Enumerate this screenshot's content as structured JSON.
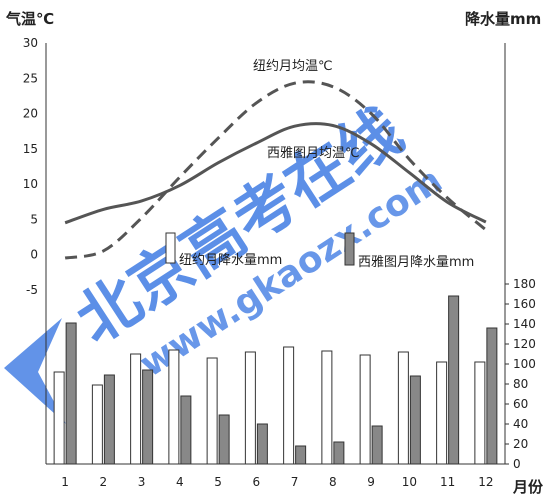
{
  "chart_data": {
    "type": "bar+line",
    "title": "",
    "x": {
      "label": "月份",
      "categories": [
        "1",
        "2",
        "3",
        "4",
        "5",
        "6",
        "7",
        "8",
        "9",
        "10",
        "11",
        "12"
      ]
    },
    "y_left": {
      "label": "气温℃",
      "range": [
        -10,
        30
      ],
      "ticks": [
        "30",
        "25",
        "20",
        "15",
        "10",
        "5",
        "0",
        "-5"
      ]
    },
    "y_right": {
      "label": "降水量mm",
      "range": [
        0,
        180
      ],
      "ticks": [
        "180",
        "160",
        "140",
        "120",
        "100",
        "80",
        "60",
        "40",
        "20",
        "0"
      ]
    },
    "series": [
      {
        "name": "纽约月均温℃",
        "type": "line",
        "style": "dashed",
        "color": "#555555",
        "axis": "left",
        "values": [
          -0.5,
          0.5,
          5.2,
          11.0,
          16.5,
          21.5,
          24.3,
          23.8,
          20.0,
          13.5,
          8.0,
          3.5
        ]
      },
      {
        "name": "西雅图月均温℃",
        "type": "line",
        "style": "solid",
        "color": "#555555",
        "axis": "left",
        "values": [
          4.5,
          6.4,
          7.6,
          9.8,
          13.0,
          15.8,
          18.2,
          18.3,
          15.7,
          11.6,
          7.4,
          4.6
        ]
      },
      {
        "name": "纽约月降水量mm",
        "type": "bar",
        "fill": "#ffffff",
        "stroke": "#333333",
        "axis": "right",
        "values": [
          92,
          79,
          110,
          114,
          106,
          112,
          117,
          113,
          109,
          112,
          102,
          102
        ]
      },
      {
        "name": "西雅图月降水量mm",
        "type": "bar",
        "fill": "#888888",
        "stroke": "#333333",
        "axis": "right",
        "values": [
          141,
          89,
          94,
          68,
          49,
          40,
          18,
          22,
          38,
          88,
          168,
          136
        ]
      }
    ],
    "annotations": [
      "纽约月均温℃",
      "西雅图月均温℃",
      "纽约月降水量mm",
      "西雅图月降水量mm"
    ],
    "grid": false
  },
  "watermark": {
    "text_top": "北京高考在线",
    "text_bottom": "www.gkaozx.com",
    "color": "#2e6fe0"
  }
}
